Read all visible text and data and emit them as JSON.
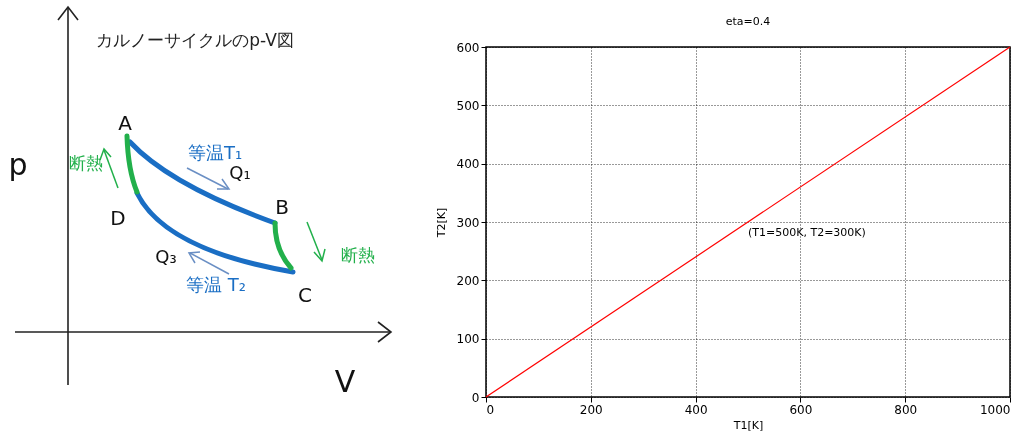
{
  "chart_data": [
    {
      "type": "other",
      "title": "カルノーサイクルのp-V図",
      "xlabel": "V",
      "ylabel": "p",
      "annotations": [
        "A",
        "B",
        "C",
        "D",
        "断熱",
        "断熱",
        "等温T₁",
        "Q₁",
        "Q₃",
        "等温 T₂"
      ]
    },
    {
      "type": "line",
      "title": "eta=0.4",
      "xlabel": "T1[K]",
      "ylabel": "T2[K]",
      "xlim": [
        0,
        1000
      ],
      "ylim": [
        0,
        600
      ],
      "xticks": [
        0,
        200,
        400,
        600,
        800,
        1000
      ],
      "yticks": [
        0,
        100,
        200,
        300,
        400,
        500,
        600
      ],
      "grid": true,
      "marker": "none",
      "series": [
        {
          "color": "#ff0000",
          "x": [
            0,
            1000
          ],
          "values": [
            0,
            600
          ]
        }
      ],
      "annotations": [
        {
          "text": "(T1=500K, T2=300K)",
          "x": 500,
          "y": 300
        }
      ]
    }
  ]
}
